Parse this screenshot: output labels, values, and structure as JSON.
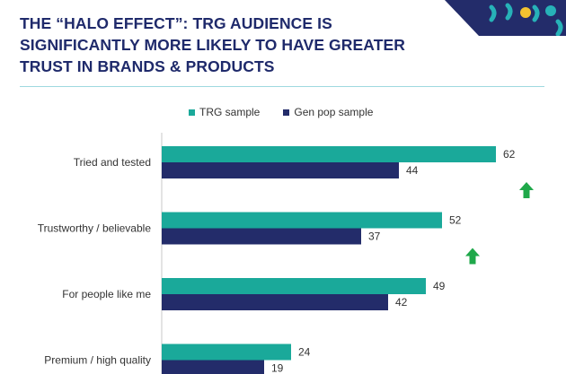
{
  "title_lines": [
    "THE “HALO EFFECT”: TRG AUDIENCE IS",
    "SIGNIFICANTLY MORE LIKELY TO HAVE GREATER",
    "TRUST IN BRANDS & PRODUCTS"
  ],
  "colors": {
    "trg": "#1aa99a",
    "genpop": "#232c6a",
    "arrow": "#1fa84a",
    "title": "#1f2a6b",
    "rule": "#9fd9e0",
    "deco_bg": "#232c6a",
    "deco_teal": "#27b2b8",
    "deco_yellow": "#f2c230"
  },
  "icons": {
    "significance": "up-arrow-icon"
  },
  "chart_data": {
    "type": "bar",
    "orientation": "horizontal",
    "categories": [
      "Tried and tested",
      "Trustworthy / believable",
      "For people like me",
      "Premium / high quality"
    ],
    "series": [
      {
        "name": "TRG sample",
        "values": [
          62,
          52,
          49,
          24
        ]
      },
      {
        "name": "Gen pop sample",
        "values": [
          44,
          37,
          42,
          19
        ]
      }
    ],
    "significant_higher": [
      true,
      true,
      false,
      false
    ],
    "legend_position": "top",
    "grid": false,
    "xlim": [
      0,
      70
    ]
  }
}
